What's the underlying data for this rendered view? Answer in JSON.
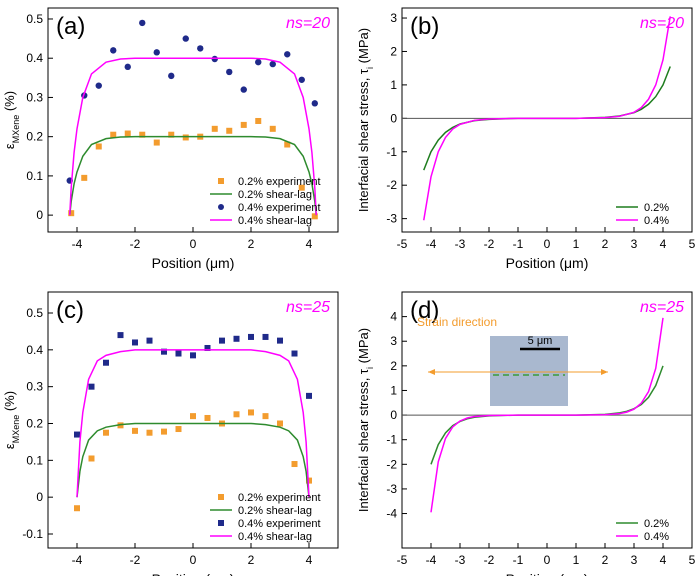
{
  "chart_data": [
    {
      "type": "line",
      "panel_label": "(a)",
      "ns_label": "ns=20",
      "ylabel": "ε",
      "ylabel_sub": "MXene",
      "ylabel_unit": " (%)",
      "xlabel": "Position (μm)",
      "xlim": [
        -5,
        5
      ],
      "xticks": [
        -4,
        -2,
        0,
        2,
        4
      ],
      "ylim": [
        -0.043,
        0.528
      ],
      "yticks": [
        0.0,
        0.1,
        0.2,
        0.3,
        0.4,
        0.5
      ],
      "legend": "lower right",
      "zero_line": false,
      "series": [
        {
          "name": "0.2% experiment",
          "color": "#f39c2e",
          "marker": "square",
          "x": [
            -4.2,
            -3.75,
            -3.25,
            -2.75,
            -2.25,
            -1.75,
            -1.25,
            -0.75,
            -0.25,
            0.25,
            0.75,
            1.25,
            1.75,
            2.25,
            2.75,
            3.25,
            3.75,
            4.2
          ],
          "values": [
            0.005,
            0.095,
            0.175,
            0.205,
            0.208,
            0.205,
            0.185,
            0.205,
            0.198,
            0.2,
            0.22,
            0.215,
            0.23,
            0.24,
            0.22,
            0.18,
            0.07,
            -0.003
          ]
        },
        {
          "name": "0.2% shear-lag",
          "color": "#2e8b2e",
          "marker": "none",
          "x": [
            -4.25,
            -4.2,
            -4.1,
            -4,
            -3.8,
            -3.5,
            -3,
            -2.5,
            -2,
            -1,
            0,
            1,
            2,
            2.5,
            3,
            3.5,
            3.8,
            4,
            4.1,
            4.2,
            4.25
          ],
          "values": [
            0,
            0.035,
            0.08,
            0.11,
            0.15,
            0.18,
            0.195,
            0.199,
            0.2,
            0.2,
            0.2,
            0.2,
            0.2,
            0.199,
            0.195,
            0.18,
            0.15,
            0.11,
            0.08,
            0.035,
            0
          ]
        },
        {
          "name": "0.4% experiment",
          "color": "#1f2a8a",
          "marker": "circle",
          "x": [
            -4.25,
            -3.75,
            -3.25,
            -2.75,
            -2.25,
            -1.75,
            -1.25,
            -0.75,
            -0.25,
            0.25,
            0.75,
            1.25,
            1.75,
            2.25,
            2.75,
            3.25,
            3.75,
            4.2
          ],
          "values": [
            0.088,
            0.305,
            0.33,
            0.42,
            0.378,
            0.49,
            0.415,
            0.355,
            0.45,
            0.425,
            0.398,
            0.365,
            0.32,
            0.39,
            0.385,
            0.41,
            0.345,
            0.285
          ]
        },
        {
          "name": "0.4% shear-lag",
          "color": "#ff00ff",
          "marker": "none",
          "x": [
            -4.25,
            -4.2,
            -4.1,
            -4,
            -3.8,
            -3.5,
            -3,
            -2.5,
            -2,
            -1,
            0,
            1,
            2,
            2.5,
            3,
            3.5,
            3.8,
            4,
            4.1,
            4.2,
            4.25
          ],
          "values": [
            0,
            0.07,
            0.16,
            0.22,
            0.3,
            0.36,
            0.39,
            0.398,
            0.4,
            0.4,
            0.4,
            0.4,
            0.4,
            0.398,
            0.39,
            0.36,
            0.3,
            0.22,
            0.16,
            0.07,
            0
          ]
        }
      ]
    },
    {
      "type": "line",
      "panel_label": "(b)",
      "ns_label": "ns=20",
      "ylabel": "Interfacial shear stress, τ",
      "ylabel_sub": "i",
      "ylabel_unit": " (MPa)",
      "xlabel": "Position (μm)",
      "xlim": [
        -5,
        5
      ],
      "xticks": [
        -5,
        -4,
        -3,
        -2,
        -1,
        0,
        1,
        2,
        3,
        4,
        5
      ],
      "ylim": [
        -3.4,
        3.3
      ],
      "yticks": [
        -3,
        -2,
        -1,
        0,
        1,
        2,
        3
      ],
      "legend": "lower right",
      "zero_line": true,
      "series": [
        {
          "name": "0.2%",
          "color": "#1e7d1e",
          "marker": "none",
          "x": [
            -4.25,
            -4,
            -3.75,
            -3.5,
            -3.25,
            -3,
            -2.5,
            -2,
            -1,
            0,
            1,
            2,
            2.5,
            3,
            3.25,
            3.5,
            3.75,
            4,
            4.25
          ],
          "values": [
            -1.55,
            -1.0,
            -0.65,
            -0.42,
            -0.27,
            -0.17,
            -0.07,
            -0.03,
            0,
            0,
            0,
            0.03,
            0.07,
            0.17,
            0.27,
            0.42,
            0.65,
            1.0,
            1.55
          ]
        },
        {
          "name": "0.4%",
          "color": "#ff00ff",
          "marker": "none",
          "x": [
            -4.25,
            -4,
            -3.75,
            -3.5,
            -3.25,
            -3,
            -2.5,
            -2,
            -1,
            0,
            1,
            2,
            2.5,
            3,
            3.25,
            3.5,
            3.75,
            4,
            4.25
          ],
          "values": [
            -3.05,
            -1.75,
            -1.0,
            -0.57,
            -0.32,
            -0.18,
            -0.06,
            -0.02,
            0,
            0,
            0,
            0.02,
            0.06,
            0.18,
            0.32,
            0.57,
            1.0,
            1.75,
            3.05
          ]
        }
      ]
    },
    {
      "type": "line",
      "panel_label": "(c)",
      "ns_label": "ns=25",
      "ylabel": "ε",
      "ylabel_sub": "MXene",
      "ylabel_unit": " (%)",
      "xlabel": "Position (μm)",
      "xlim": [
        -5,
        5
      ],
      "xticks": [
        -4,
        -2,
        0,
        2,
        4
      ],
      "ylim": [
        -0.138,
        0.557
      ],
      "yticks": [
        -0.1,
        0.0,
        0.1,
        0.2,
        0.3,
        0.4,
        0.5
      ],
      "legend": "lower right",
      "zero_line": false,
      "series": [
        {
          "name": "0.2% experiment",
          "color": "#f39c2e",
          "marker": "square",
          "x": [
            -4,
            -3.5,
            -3,
            -2.5,
            -2,
            -1.5,
            -1,
            -0.5,
            0,
            0.5,
            1,
            1.5,
            2,
            2.5,
            3,
            3.5,
            4
          ],
          "values": [
            -0.03,
            0.105,
            0.175,
            0.195,
            0.18,
            0.175,
            0.178,
            0.185,
            0.22,
            0.215,
            0.2,
            0.225,
            0.23,
            0.22,
            0.2,
            0.09,
            0.045
          ]
        },
        {
          "name": "0.2% shear-lag",
          "color": "#2e8b2e",
          "marker": "none",
          "x": [
            -4,
            -3.9,
            -3.8,
            -3.6,
            -3.3,
            -3,
            -2.5,
            -2,
            0,
            2,
            2.5,
            3,
            3.3,
            3.6,
            3.8,
            3.9,
            4
          ],
          "values": [
            0,
            0.07,
            0.11,
            0.155,
            0.18,
            0.19,
            0.197,
            0.2,
            0.2,
            0.2,
            0.197,
            0.19,
            0.18,
            0.155,
            0.11,
            0.07,
            0
          ]
        },
        {
          "name": "0.4% experiment",
          "color": "#1f2a8a",
          "marker": "square",
          "x": [
            -4,
            -3.5,
            -3,
            -2.5,
            -2,
            -1.5,
            -1,
            -0.5,
            0,
            0.5,
            1,
            1.5,
            2,
            2.5,
            3,
            3.5,
            4
          ],
          "values": [
            0.17,
            0.3,
            0.365,
            0.44,
            0.42,
            0.425,
            0.395,
            0.39,
            0.385,
            0.405,
            0.425,
            0.43,
            0.435,
            0.435,
            0.425,
            0.39,
            0.275
          ]
        },
        {
          "name": "0.4% shear-lag",
          "color": "#ff00ff",
          "marker": "none",
          "x": [
            -4,
            -3.9,
            -3.8,
            -3.6,
            -3.3,
            -3,
            -2.5,
            -2,
            0,
            2,
            2.5,
            3,
            3.3,
            3.6,
            3.8,
            3.9,
            4
          ],
          "values": [
            0,
            0.15,
            0.23,
            0.32,
            0.37,
            0.385,
            0.395,
            0.4,
            0.4,
            0.4,
            0.395,
            0.385,
            0.37,
            0.32,
            0.23,
            0.15,
            0
          ]
        }
      ]
    },
    {
      "type": "line",
      "panel_label": "(d)",
      "ns_label": "ns=25",
      "ylabel": "Interfacial shear stress, τ",
      "ylabel_sub": "i",
      "ylabel_unit": " (MPa)",
      "xlabel": "Position (μm)",
      "xlim": [
        -5,
        5
      ],
      "xticks": [
        -5,
        -4,
        -3,
        -2,
        -1,
        0,
        1,
        2,
        3,
        4,
        5
      ],
      "ylim": [
        -5.4,
        5.0
      ],
      "yticks": [
        -4,
        -3,
        -2,
        -1,
        0,
        1,
        2,
        3,
        4
      ],
      "legend": "lower right",
      "zero_line": true,
      "inset_direction": "Strain direction",
      "inset_scale": "5 μm",
      "series": [
        {
          "name": "0.2%",
          "color": "#2e8b2e",
          "marker": "none",
          "x": [
            -4,
            -3.75,
            -3.5,
            -3.25,
            -3,
            -2.75,
            -2.5,
            -2,
            -1,
            0,
            1,
            2,
            2.5,
            2.75,
            3,
            3.25,
            3.5,
            3.75,
            4
          ],
          "values": [
            -2.0,
            -1.2,
            -0.72,
            -0.43,
            -0.26,
            -0.15,
            -0.09,
            -0.03,
            0,
            0,
            0,
            0.03,
            0.09,
            0.15,
            0.26,
            0.43,
            0.72,
            1.2,
            2.0
          ]
        },
        {
          "name": "0.4%",
          "color": "#ff00ff",
          "marker": "none",
          "x": [
            -4,
            -3.75,
            -3.5,
            -3.25,
            -3,
            -2.75,
            -2.5,
            -2,
            -1,
            0,
            1,
            2,
            2.5,
            2.75,
            3,
            3.25,
            3.5,
            3.75,
            4
          ],
          "values": [
            -3.95,
            -1.9,
            -0.95,
            -0.48,
            -0.24,
            -0.12,
            -0.06,
            -0.015,
            0,
            0,
            0,
            0.015,
            0.06,
            0.12,
            0.24,
            0.48,
            0.95,
            1.9,
            3.95
          ]
        }
      ]
    }
  ]
}
